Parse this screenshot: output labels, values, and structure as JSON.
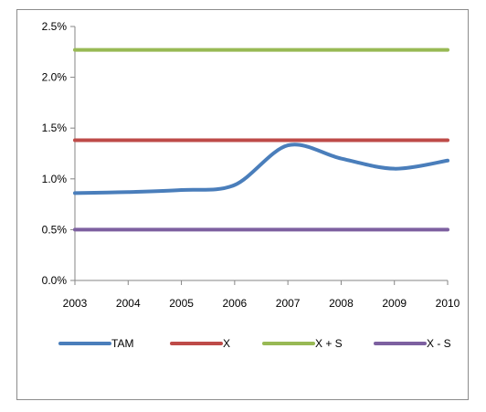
{
  "chart_data": {
    "type": "line",
    "title": "",
    "xlabel": "",
    "ylabel": "",
    "x": [
      "2003",
      "2004",
      "2005",
      "2006",
      "2007",
      "2008",
      "2009",
      "2010"
    ],
    "ylim": [
      0,
      2.5
    ],
    "y_ticks": [
      "0.0%",
      "0.5%",
      "1.0%",
      "1.5%",
      "2.0%",
      "2.5%"
    ],
    "y_tick_values": [
      0,
      0.5,
      1.0,
      1.5,
      2.0,
      2.5
    ],
    "grid": false,
    "legend_position": "bottom",
    "series": [
      {
        "name": "TAM",
        "color": "#4a7ebb",
        "values": [
          0.86,
          0.87,
          0.89,
          0.94,
          1.33,
          1.2,
          1.1,
          1.18
        ]
      },
      {
        "name": "X",
        "color": "#be4b48",
        "values": [
          1.38,
          1.38,
          1.38,
          1.38,
          1.38,
          1.38,
          1.38,
          1.38
        ]
      },
      {
        "name": "X + S",
        "color": "#98b954",
        "values": [
          2.27,
          2.27,
          2.27,
          2.27,
          2.27,
          2.27,
          2.27,
          2.27
        ]
      },
      {
        "name": "X - S",
        "color": "#7d60a0",
        "values": [
          0.5,
          0.5,
          0.5,
          0.5,
          0.5,
          0.5,
          0.5,
          0.5
        ]
      }
    ]
  }
}
